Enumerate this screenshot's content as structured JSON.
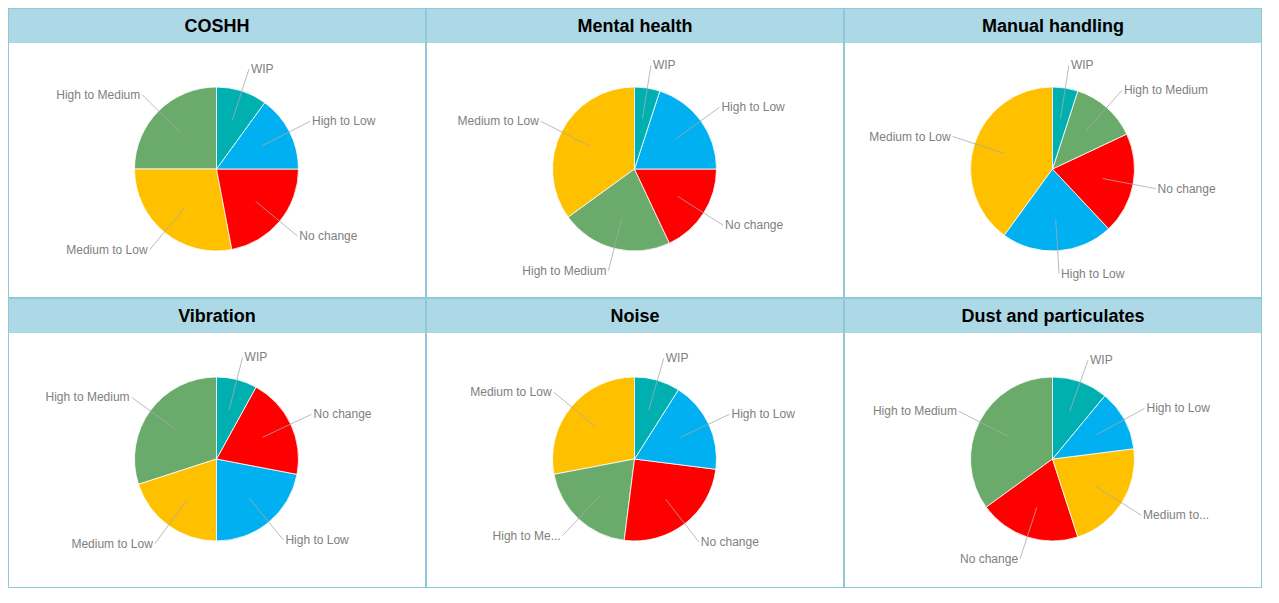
{
  "chart_data": [
    {
      "type": "pie",
      "title": "COSHH",
      "categories": [
        "High to Medium",
        "Medium to Low",
        "No change",
        "High to Low",
        "WIP"
      ],
      "values": [
        25,
        28,
        22,
        15,
        10
      ],
      "colors": [
        "#6aaa6a",
        "#ffc000",
        "#ff0000",
        "#00b0f0",
        "#00b0b0"
      ]
    },
    {
      "type": "pie",
      "title": "Mental health",
      "categories": [
        "Medium to Low",
        "High to Medium",
        "No change",
        "High to Low",
        "WIP"
      ],
      "values": [
        35,
        22,
        18,
        20,
        5
      ],
      "colors": [
        "#ffc000",
        "#6aaa6a",
        "#ff0000",
        "#00b0f0",
        "#00b0b0"
      ]
    },
    {
      "type": "pie",
      "title": "Manual handling",
      "categories": [
        "Medium to Low",
        "High to Low",
        "No change",
        "High to Medium",
        "WIP"
      ],
      "values": [
        40,
        22,
        20,
        13,
        5
      ],
      "colors": [
        "#ffc000",
        "#00b0f0",
        "#ff0000",
        "#6aaa6a",
        "#00b0b0"
      ]
    },
    {
      "type": "pie",
      "title": "Vibration",
      "categories": [
        "High to Medium",
        "Medium to Low",
        "High to Low",
        "No change",
        "WIP"
      ],
      "values": [
        30,
        20,
        22,
        20,
        8
      ],
      "colors": [
        "#6aaa6a",
        "#ffc000",
        "#00b0f0",
        "#ff0000",
        "#00b0b0"
      ]
    },
    {
      "type": "pie",
      "title": "Noise",
      "categories": [
        "Medium to Low",
        "High to Me...",
        "No change",
        "High to Low",
        "WIP"
      ],
      "values": [
        28,
        20,
        25,
        18,
        9
      ],
      "colors": [
        "#ffc000",
        "#6aaa6a",
        "#ff0000",
        "#00b0f0",
        "#00b0b0"
      ]
    },
    {
      "type": "pie",
      "title": "Dust and particulates",
      "categories": [
        "High to Medium",
        "No change",
        "Medium to...",
        "High to Low",
        "WIP"
      ],
      "values": [
        35,
        20,
        22,
        12,
        11
      ],
      "colors": [
        "#6aaa6a",
        "#ff0000",
        "#ffc000",
        "#00b0f0",
        "#00b0b0"
      ]
    }
  ]
}
